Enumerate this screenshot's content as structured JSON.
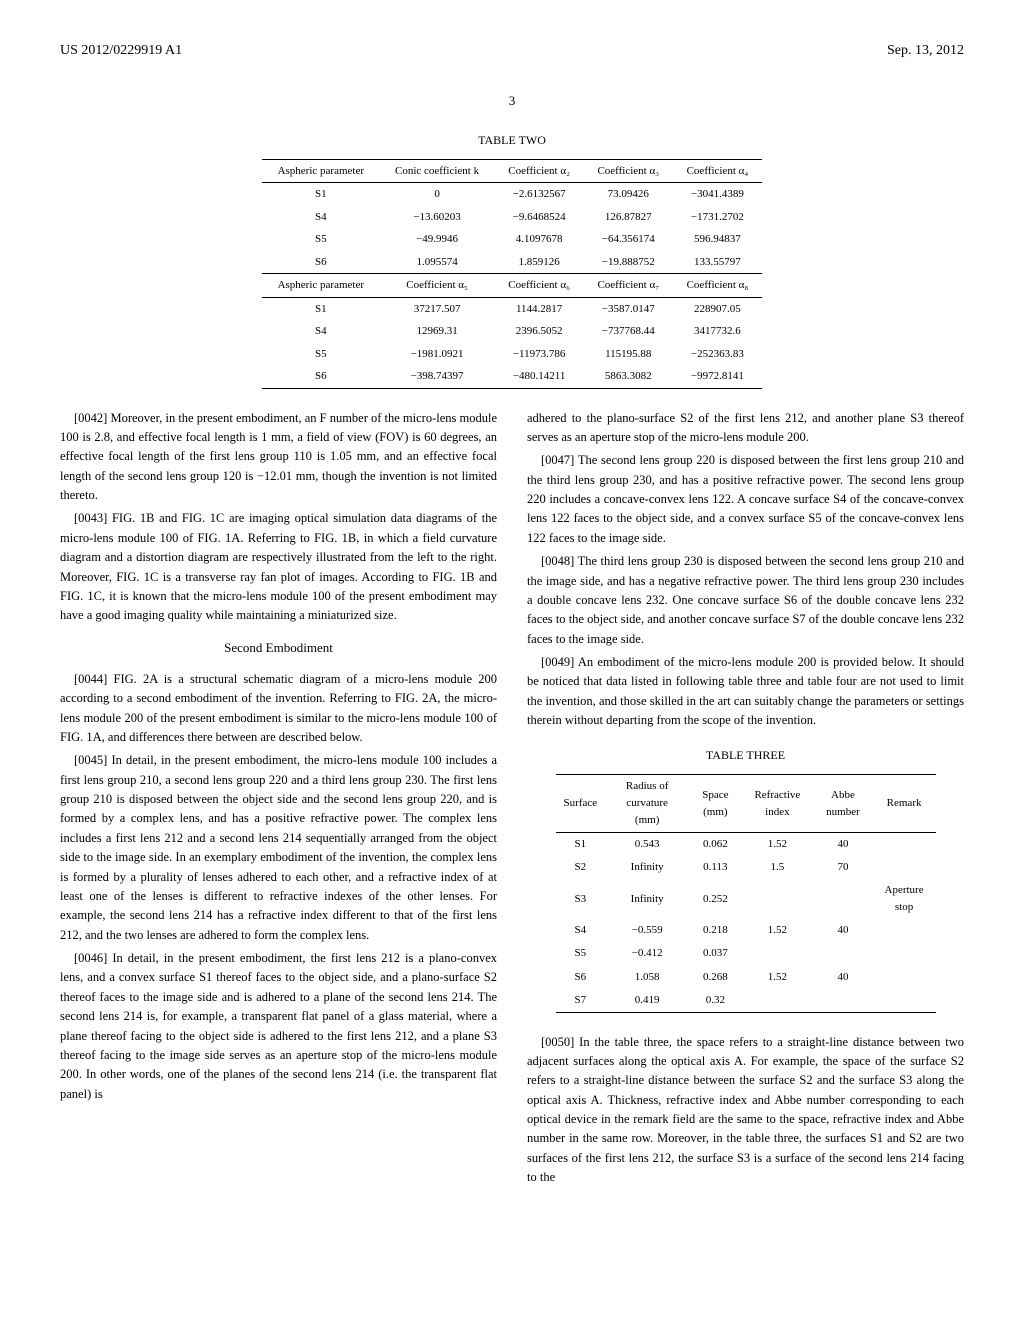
{
  "header": {
    "left": "US 2012/0229919 A1",
    "right": "Sep. 13, 2012"
  },
  "page_number": "3",
  "table_two": {
    "title": "TABLE TWO",
    "headers_top": [
      "Aspheric parameter",
      "Conic coefficient k",
      "Coefficient α₂",
      "Coefficient α₃",
      "Coefficient α₄"
    ],
    "rows_top": [
      [
        "S1",
        "0",
        "−2.6132567",
        "73.09426",
        "−3041.4389"
      ],
      [
        "S4",
        "−13.60203",
        "−9.6468524",
        "126.87827",
        "−1731.2702"
      ],
      [
        "S5",
        "−49.9946",
        "4.1097678",
        "−64.356174",
        "596.94837"
      ],
      [
        "S6",
        "1.095574",
        "1.859126",
        "−19.888752",
        "133.55797"
      ]
    ],
    "headers_bottom": [
      "Aspheric parameter",
      "Coefficient α₅",
      "Coefficient α₆",
      "Coefficient α₇",
      "Coefficient α₈"
    ],
    "rows_bottom": [
      [
        "S1",
        "37217.507",
        "1144.2817",
        "−3587.0147",
        "228907.05"
      ],
      [
        "S4",
        "12969.31",
        "2396.5052",
        "−737768.44",
        "3417732.6"
      ],
      [
        "S5",
        "−1981.0921",
        "−11973.786",
        "115195.88",
        "−252363.83"
      ],
      [
        "S6",
        "−398.74397",
        "−480.14211",
        "5863.3082",
        "−9972.8141"
      ]
    ]
  },
  "paragraphs": {
    "p0042": "[0042]   Moreover, in the present embodiment, an F number of the micro-lens module 100 is 2.8, and effective focal length is 1 mm, a field of view (FOV) is 60 degrees, an effective focal length of the first lens group 110 is 1.05 mm, and an effective focal length of the second lens group 120 is −12.01 mm, though the invention is not limited thereto.",
    "p0043": "[0043]   FIG. 1B and FIG. 1C are imaging optical simulation data diagrams of the micro-lens module 100 of FIG. 1A. Referring to FIG. 1B, in which a field curvature diagram and a distortion diagram are respectively illustrated from the left to the right. Moreover, FIG. 1C is a transverse ray fan plot of images. According to FIG. 1B and FIG. 1C, it is known that the micro-lens module 100 of the present embodiment may have a good imaging quality while maintaining a miniaturized size.",
    "section_title": "Second Embodiment",
    "p0044": "[0044]   FIG. 2A is a structural schematic diagram of a micro-lens module 200 according to a second embodiment of the invention. Referring to FIG. 2A, the micro-lens module 200 of the present embodiment is similar to the micro-lens module 100 of FIG. 1A, and differences there between are described below.",
    "p0045": "[0045]   In detail, in the present embodiment, the micro-lens module 100 includes a first lens group 210, a second lens group 220 and a third lens group 230. The first lens group 210 is disposed between the object side and the second lens group 220, and is formed by a complex lens, and has a positive refractive power. The complex lens includes a first lens 212 and a second lens 214 sequentially arranged from the object side to the image side. In an exemplary embodiment of the invention, the complex lens is formed by a plurality of lenses adhered to each other, and a refractive index of at least one of the lenses is different to refractive indexes of the other lenses. For example, the second lens 214 has a refractive index different to that of the first lens 212, and the two lenses are adhered to form the complex lens.",
    "p0046": "[0046]   In detail, in the present embodiment, the first lens 212 is a plano-convex lens, and a convex surface S1 thereof faces to the object side, and a plano-surface S2 thereof faces to the image side and is adhered to a plane of the second lens 214. The second lens 214 is, for example, a transparent flat panel of a glass material, where a plane thereof facing to the object side is adhered to the first lens 212, and a plane S3 thereof facing to the image side serves as an aperture stop of the micro-lens module 200. In other words, one of the planes of the second lens 214 (i.e. the transparent flat panel) is",
    "p0046_cont": "adhered to the plano-surface S2 of the first lens 212, and another plane S3 thereof serves as an aperture stop of the micro-lens module 200.",
    "p0047": "[0047]   The second lens group 220 is disposed between the first lens group 210 and the third lens group 230, and has a positive refractive power. The second lens group 220 includes a concave-convex lens 122. A concave surface S4 of the concave-convex lens 122 faces to the object side, and a convex surface S5 of the concave-convex lens 122 faces to the image side.",
    "p0048": "[0048]   The third lens group 230 is disposed between the second lens group 210 and the image side, and has a negative refractive power. The third lens group 230 includes a double concave lens 232. One concave surface S6 of the double concave lens 232 faces to the object side, and another concave surface S7 of the double concave lens 232 faces to the image side.",
    "p0049": "[0049]   An embodiment of the micro-lens module 200 is provided below. It should be noticed that data listed in following table three and table four are not used to limit the invention, and those skilled in the art can suitably change the parameters or settings therein without departing from the scope of the invention.",
    "p0050": "[0050]   In the table three, the space refers to a straight-line distance between two adjacent surfaces along the optical axis A. For example, the space of the surface S2 refers to a straight-line distance between the surface S2 and the surface S3 along the optical axis A. Thickness, refractive index and Abbe number corresponding to each optical device in the remark field are the same to the space, refractive index and Abbe number in the same row. Moreover, in the table three, the surfaces S1 and S2 are two surfaces of the first lens 212, the surface S3 is a surface of the second lens 214 facing to the"
  },
  "table_three": {
    "title": "TABLE THREE",
    "headers": [
      "Surface",
      "Radius of curvature (mm)",
      "Space (mm)",
      "Refractive index",
      "Abbe number",
      "Remark"
    ],
    "rows": [
      [
        "S1",
        "0.543",
        "0.062",
        "1.52",
        "40",
        ""
      ],
      [
        "S2",
        "Infinity",
        "0.113",
        "1.5",
        "70",
        ""
      ],
      [
        "S3",
        "Infinity",
        "0.252",
        "",
        "",
        "Aperture stop"
      ],
      [
        "S4",
        "−0.559",
        "0.218",
        "1.52",
        "40",
        ""
      ],
      [
        "S5",
        "−0.412",
        "0.037",
        "",
        "",
        ""
      ],
      [
        "S6",
        "1.058",
        "0.268",
        "1.52",
        "40",
        ""
      ],
      [
        "S7",
        "0.419",
        "0.32",
        "",
        "",
        ""
      ]
    ]
  }
}
